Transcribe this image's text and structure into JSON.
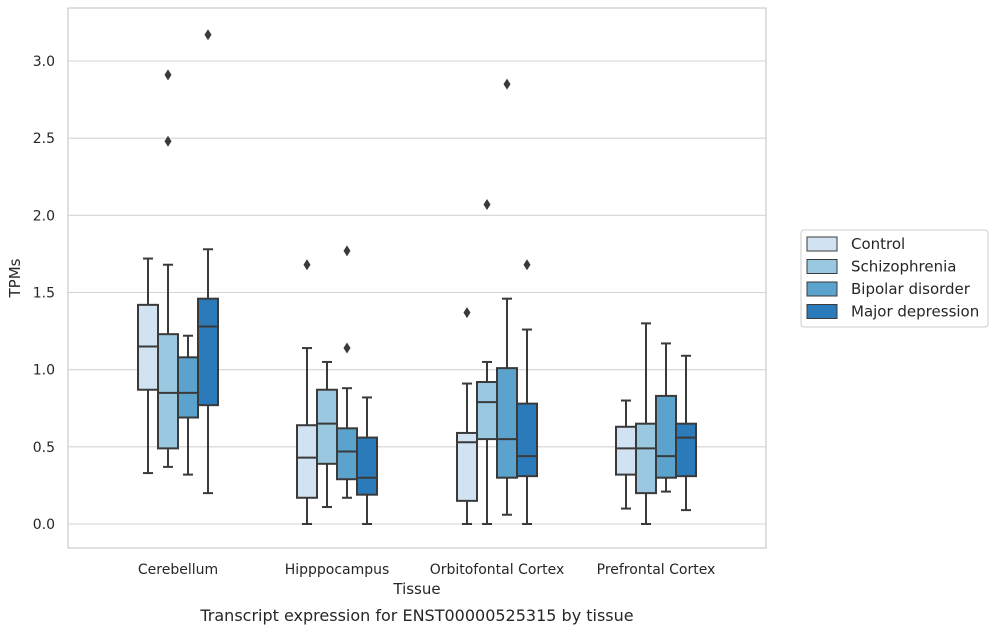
{
  "chart_data": {
    "type": "box",
    "xlabel": "Tissue",
    "ylabel": "TPMs",
    "caption": "Transcript expression for ENST00000525315 by tissue",
    "ylim": [
      -0.15,
      3.35
    ],
    "yticks": [
      "0.0",
      "0.5",
      "1.0",
      "1.5",
      "2.0",
      "2.5",
      "3.0"
    ],
    "grid": true,
    "legend_position": "right",
    "categories": [
      "Cerebellum",
      "Hipppocampus",
      "Orbitofontal Cortex",
      "Prefrontal Cortex"
    ],
    "series": [
      {
        "name": "Control",
        "color": "#d1e2f2",
        "boxes": [
          {
            "whislo": 0.33,
            "q1": 0.87,
            "med": 1.15,
            "q3": 1.42,
            "whishi": 1.72,
            "fliers": []
          },
          {
            "whislo": 0.0,
            "q1": 0.17,
            "med": 0.43,
            "q3": 0.64,
            "whishi": 1.14,
            "fliers": [
              1.68
            ]
          },
          {
            "whislo": 0.0,
            "q1": 0.15,
            "med": 0.53,
            "q3": 0.59,
            "whishi": 0.91,
            "fliers": [
              1.37
            ]
          },
          {
            "whislo": 0.1,
            "q1": 0.32,
            "med": 0.49,
            "q3": 0.63,
            "whishi": 0.8,
            "fliers": []
          }
        ]
      },
      {
        "name": "Schizophrenia",
        "color": "#9ac8e0",
        "boxes": [
          {
            "whislo": 0.37,
            "q1": 0.49,
            "med": 0.85,
            "q3": 1.23,
            "whishi": 1.68,
            "fliers": [
              2.48,
              2.91
            ]
          },
          {
            "whislo": 0.11,
            "q1": 0.39,
            "med": 0.65,
            "q3": 0.87,
            "whishi": 1.05,
            "fliers": []
          },
          {
            "whislo": 0.0,
            "q1": 0.55,
            "med": 0.79,
            "q3": 0.92,
            "whishi": 1.05,
            "fliers": [
              2.07
            ]
          },
          {
            "whislo": 0.0,
            "q1": 0.2,
            "med": 0.49,
            "q3": 0.65,
            "whishi": 1.3,
            "fliers": []
          }
        ]
      },
      {
        "name": "Bipolar disorder",
        "color": "#5ba2cc",
        "boxes": [
          {
            "whislo": 0.32,
            "q1": 0.69,
            "med": 0.85,
            "q3": 1.08,
            "whishi": 1.22,
            "fliers": []
          },
          {
            "whislo": 0.17,
            "q1": 0.29,
            "med": 0.47,
            "q3": 0.62,
            "whishi": 0.88,
            "fliers": [
              1.14,
              1.77
            ]
          },
          {
            "whislo": 0.06,
            "q1": 0.3,
            "med": 0.55,
            "q3": 1.01,
            "whishi": 1.46,
            "fliers": [
              2.85
            ]
          },
          {
            "whislo": 0.21,
            "q1": 0.3,
            "med": 0.44,
            "q3": 0.83,
            "whishi": 1.17,
            "fliers": []
          }
        ]
      },
      {
        "name": "Major depression",
        "color": "#2b7bba",
        "boxes": [
          {
            "whislo": 0.2,
            "q1": 0.77,
            "med": 1.28,
            "q3": 1.46,
            "whishi": 1.78,
            "fliers": [
              3.17
            ]
          },
          {
            "whislo": 0.0,
            "q1": 0.19,
            "med": 0.3,
            "q3": 0.56,
            "whishi": 0.82,
            "fliers": []
          },
          {
            "whislo": 0.0,
            "q1": 0.31,
            "med": 0.44,
            "q3": 0.78,
            "whishi": 1.26,
            "fliers": [
              1.68
            ]
          },
          {
            "whislo": 0.09,
            "q1": 0.31,
            "med": 0.56,
            "q3": 0.65,
            "whishi": 1.09,
            "fliers": []
          }
        ]
      }
    ]
  }
}
